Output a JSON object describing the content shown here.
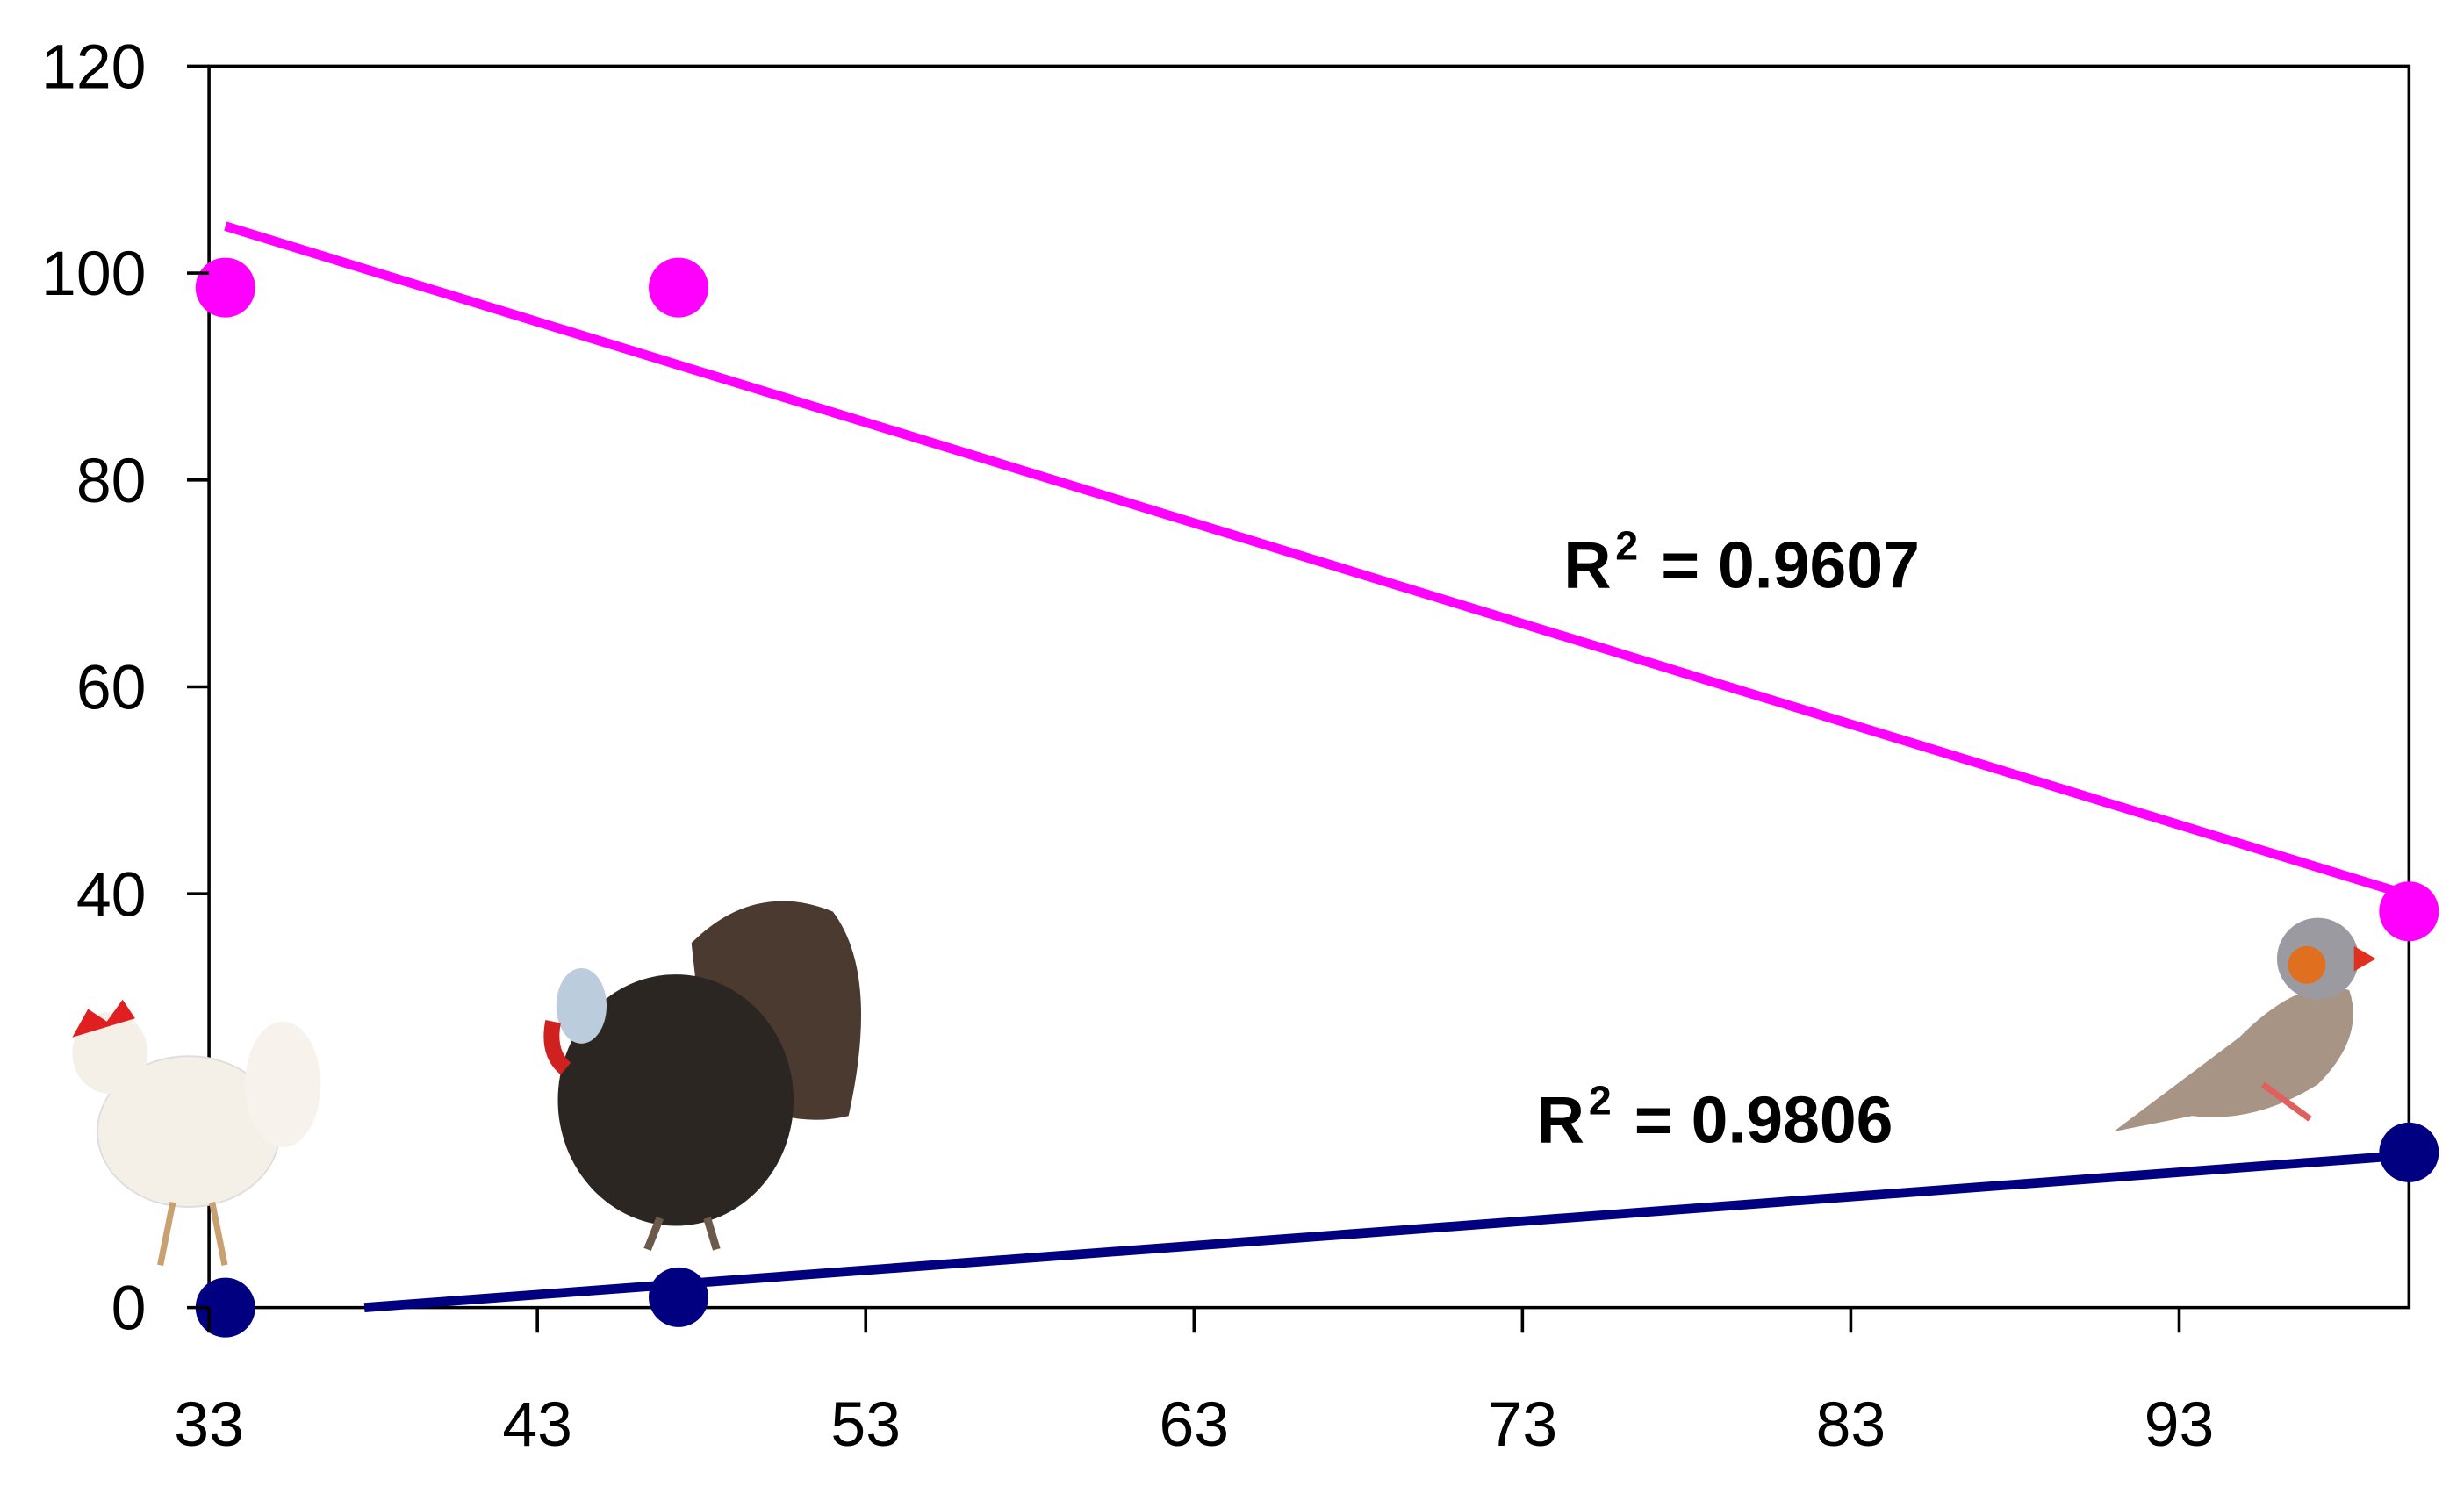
{
  "chart_data": {
    "type": "scatter",
    "series": [
      {
        "color": "#ff00ff",
        "x": [
          33.5,
          47.3,
          100
        ],
        "values": [
          98.6,
          98.6,
          38.3
        ],
        "trendline": true
      },
      {
        "color": "#000080",
        "x": [
          33.5,
          47.3,
          100
        ],
        "values": [
          0,
          1,
          15
        ],
        "trendline": true
      }
    ],
    "xlim": [
      33,
      100
    ],
    "xticks": [
      33,
      43,
      53,
      63,
      73,
      83,
      93
    ],
    "ylim": [
      0,
      120
    ],
    "yticks": [
      0,
      40,
      60,
      80,
      100,
      120
    ],
    "annotations": [
      {
        "base": "R",
        "sup": "2",
        "text": "= 0.9607"
      },
      {
        "base": "R",
        "sup": "2",
        "text": "= 0.9806"
      }
    ]
  }
}
